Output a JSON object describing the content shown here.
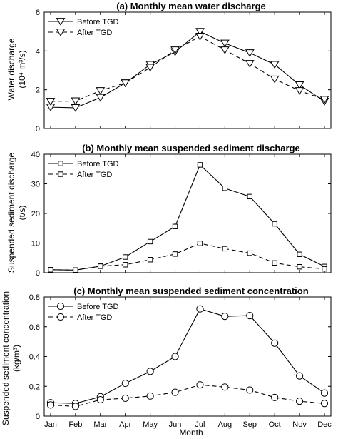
{
  "chart_data": [
    {
      "type": "line",
      "title": "(a) Monthly mean water discharge",
      "ylabel_line1": "Water discharge",
      "ylabel_line2": "(10⁴ m³/s)",
      "xlabel": "",
      "categories": [
        "Jan",
        "Feb",
        "Mar",
        "Apr",
        "May",
        "Jun",
        "Jul",
        "Aug",
        "Sep",
        "Oct",
        "Nov",
        "Dec"
      ],
      "ylim": [
        0,
        6
      ],
      "yticks": [
        0,
        2,
        4,
        6
      ],
      "marker": "triangle-down",
      "legend_position": "top-left",
      "series": [
        {
          "name": "Before TGD",
          "dash": "solid",
          "values": [
            1.1,
            1.07,
            1.6,
            2.35,
            3.3,
            3.95,
            5.0,
            4.4,
            3.9,
            3.3,
            2.25,
            1.4
          ]
        },
        {
          "name": "After TGD",
          "dash": "dashed",
          "values": [
            1.4,
            1.42,
            1.95,
            2.35,
            3.15,
            4.05,
            4.75,
            4.05,
            3.35,
            2.55,
            1.95,
            1.5
          ]
        }
      ]
    },
    {
      "type": "line",
      "title": "(b) Monthly mean suspended sediment discharge",
      "ylabel_line1": "Suspended sediment discharge",
      "ylabel_line2": "(t/s)",
      "xlabel": "",
      "categories": [
        "Jan",
        "Feb",
        "Mar",
        "Apr",
        "May",
        "Jun",
        "Jul",
        "Aug",
        "Sep",
        "Oct",
        "Nov",
        "Dec"
      ],
      "ylim": [
        0,
        40
      ],
      "yticks": [
        0,
        10,
        20,
        30,
        40
      ],
      "marker": "square",
      "legend_position": "top-left",
      "series": [
        {
          "name": "Before TGD",
          "dash": "solid",
          "values": [
            1.0,
            0.9,
            2.2,
            5.3,
            10.5,
            15.6,
            36.4,
            28.5,
            25.7,
            16.5,
            6.2,
            2.1
          ]
        },
        {
          "name": "After TGD",
          "dash": "dashed",
          "values": [
            1.0,
            0.9,
            2.2,
            2.7,
            4.4,
            6.3,
            9.9,
            8.1,
            6.6,
            3.3,
            2.0,
            1.3
          ]
        }
      ]
    },
    {
      "type": "line",
      "title": "(c) Monthly mean suspended sediment concentration",
      "ylabel_line1": "Suspended sediment concentration",
      "ylabel_line2": "(kg/m³)",
      "xlabel": "Month",
      "categories": [
        "Jan",
        "Feb",
        "Mar",
        "Apr",
        "May",
        "Jun",
        "Jul",
        "Aug",
        "Sep",
        "Oct",
        "Nov",
        "Dec"
      ],
      "ylim": [
        0,
        0.8
      ],
      "yticks": [
        0,
        0.2,
        0.4,
        0.6,
        0.8
      ],
      "marker": "circle",
      "legend_position": "top-left",
      "series": [
        {
          "name": "Before TGD",
          "dash": "solid",
          "values": [
            0.09,
            0.085,
            0.13,
            0.22,
            0.3,
            0.4,
            0.72,
            0.67,
            0.675,
            0.49,
            0.27,
            0.155
          ]
        },
        {
          "name": "After TGD",
          "dash": "dashed",
          "values": [
            0.075,
            0.065,
            0.11,
            0.12,
            0.135,
            0.16,
            0.21,
            0.195,
            0.175,
            0.125,
            0.1,
            0.085
          ]
        }
      ]
    }
  ]
}
